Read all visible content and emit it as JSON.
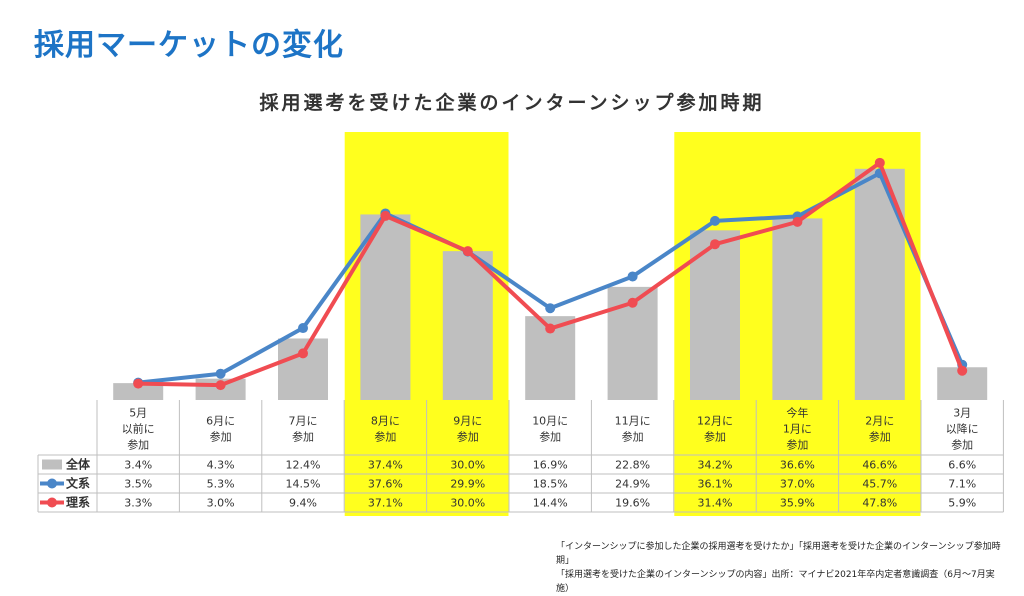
{
  "page": {
    "title": "採用マーケットの変化"
  },
  "colors": {
    "highlight": "#ffff1e",
    "bar": "#bfbfbf",
    "line_all_legend": "#bfbfbf",
    "line_bunkei": "#4a86c8",
    "line_rikei": "#f04c52",
    "title": "#1d74c6"
  },
  "chart_data": {
    "type": "bar",
    "title": "採用選考を受けた企業のインターンシップ参加時期",
    "categories": [
      "5月\n以前に\n参加",
      "6月に\n参加",
      "7月に\n参加",
      "8月に\n参加",
      "9月に\n参加",
      "10月に\n参加",
      "11月に\n参加",
      "12月に\n参加",
      "今年\n1月に\n参加",
      "2月に\n参加",
      "3月\n以降に\n参加"
    ],
    "highlighted_categories": [
      3,
      4,
      7,
      8,
      9
    ],
    "ylim": [
      0,
      52
    ],
    "series": [
      {
        "name": "全体",
        "kind": "bar",
        "values": [
          3.4,
          4.3,
          12.4,
          37.4,
          30.0,
          16.9,
          22.8,
          34.2,
          36.6,
          46.6,
          6.6
        ],
        "labels": [
          "3.4%",
          "4.3%",
          "12.4%",
          "37.4%",
          "30.0%",
          "16.9%",
          "22.8%",
          "34.2%",
          "36.6%",
          "46.6%",
          "6.6%"
        ]
      },
      {
        "name": "文系",
        "kind": "line",
        "values": [
          3.5,
          5.3,
          14.5,
          37.6,
          29.9,
          18.5,
          24.9,
          36.1,
          37.0,
          45.7,
          7.1
        ],
        "labels": [
          "3.5%",
          "5.3%",
          "14.5%",
          "37.6%",
          "29.9%",
          "18.5%",
          "24.9%",
          "36.1%",
          "37.0%",
          "45.7%",
          "7.1%"
        ]
      },
      {
        "name": "理系",
        "kind": "line",
        "values": [
          3.3,
          3.0,
          9.4,
          37.1,
          30.0,
          14.4,
          19.6,
          31.4,
          35.9,
          47.8,
          5.9
        ],
        "labels": [
          "3.3%",
          "3.0%",
          "9.4%",
          "37.1%",
          "30.0%",
          "14.4%",
          "19.6%",
          "31.4%",
          "35.9%",
          "47.8%",
          "5.9%"
        ]
      }
    ]
  },
  "source": {
    "line1": "「インターンシップに参加した企業の採用選考を受けたか」「採用選考を受けた企業のインターンシップ参加時期」",
    "line2": "「採用選考を受けた企業のインターンシップの内容」出所：マイナビ2021年卒内定者意識調査（6月～7月実施）"
  }
}
